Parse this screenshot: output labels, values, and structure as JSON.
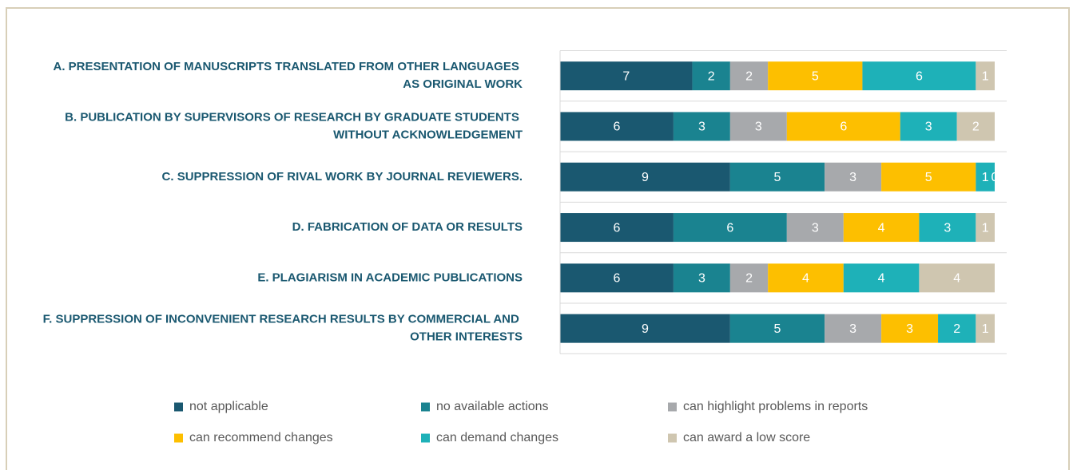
{
  "chart_data": {
    "type": "stacked-bar",
    "orientation": "horizontal",
    "categories": [
      "A. PRESENTATION OF MANUSCRIPTS TRANSLATED FROM OTHER LANGUAGES AS ORIGINAL WORK",
      "B. PUBLICATION BY SUPERVISORS OF RESEARCH BY GRADUATE STUDENTS WITHOUT ACKNOWLEDGEMENT",
      "C. SUPPRESSION OF RIVAL WORK BY JOURNAL REVIEWERS.",
      "D. FABRICATION OF DATA OR RESULTS",
      "E. PLAGIARISM IN ACADEMIC PUBLICATIONS",
      "F. SUPPRESSION OF INCONVENIENT RESEARCH RESULTS BY COMMERCIAL AND OTHER INTERESTS"
    ],
    "series": [
      {
        "name": "not applicable",
        "color": "#1a5870",
        "values": [
          7,
          6,
          9,
          6,
          6,
          9
        ]
      },
      {
        "name": "no available actions",
        "color": "#1a8390",
        "values": [
          2,
          3,
          5,
          6,
          3,
          5
        ]
      },
      {
        "name": "can highlight problems in reports",
        "color": "#a7a9ac",
        "values": [
          2,
          3,
          3,
          3,
          2,
          3
        ]
      },
      {
        "name": "can recommend changes",
        "color": "#fdbf00",
        "values": [
          5,
          6,
          5,
          4,
          4,
          3
        ]
      },
      {
        "name": "can demand changes",
        "color": "#1eb1b8",
        "values": [
          6,
          3,
          1,
          3,
          4,
          2
        ]
      },
      {
        "name": "can award a low score",
        "color": "#cfc6b0",
        "values": [
          1,
          2,
          0,
          1,
          4,
          1
        ]
      }
    ],
    "xlim": [
      0,
      23
    ],
    "legend": "bottom"
  }
}
